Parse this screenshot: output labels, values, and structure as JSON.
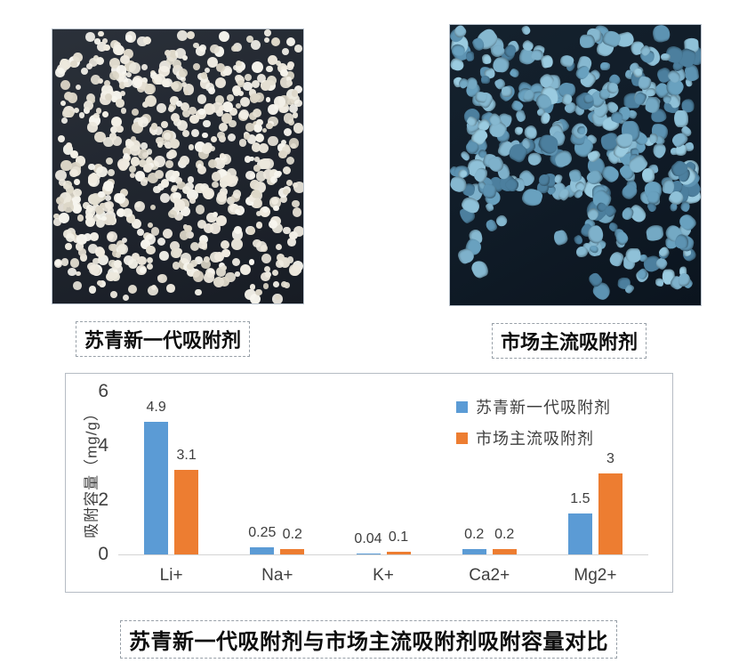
{
  "photos": {
    "left": {
      "label": "苏青新一代吸附剂"
    },
    "right": {
      "label": "市场主流吸附剂"
    }
  },
  "caption": "苏青新一代吸附剂与市场主流吸附剂吸附容量对比",
  "colors": {
    "series1": "#5B9BD5",
    "series2": "#ED7D31",
    "axis_text": "#404040",
    "chart_border": "#B6BCC4",
    "left_photo_bead": "#EDE9DE",
    "left_photo_bg": "#20252E",
    "right_photo_stone": "#7FB2CC",
    "right_photo_bg": "#101C28"
  },
  "chart_data": {
    "type": "bar",
    "categories": [
      "Li+",
      "Na+",
      "K+",
      "Ca2+",
      "Mg2+"
    ],
    "series": [
      {
        "name": "苏青新一代吸附剂",
        "color": "#5B9BD5",
        "values": [
          4.9,
          0.25,
          0.04,
          0.2,
          1.5
        ],
        "labels": [
          "4.9",
          "0.25",
          "0.04",
          "0.2",
          "1.5"
        ]
      },
      {
        "name": "市场主流吸附剂",
        "color": "#ED7D31",
        "values": [
          3.1,
          0.2,
          0.1,
          0.2,
          3
        ],
        "labels": [
          "3.1",
          "0.2",
          "0.1",
          "0.2",
          "3"
        ]
      }
    ],
    "ylabel": "吸附容量（mg/g）",
    "yticks": [
      0,
      2,
      4,
      6
    ],
    "ylim": [
      0,
      6
    ],
    "legend_position": "top-right",
    "grid": false
  }
}
